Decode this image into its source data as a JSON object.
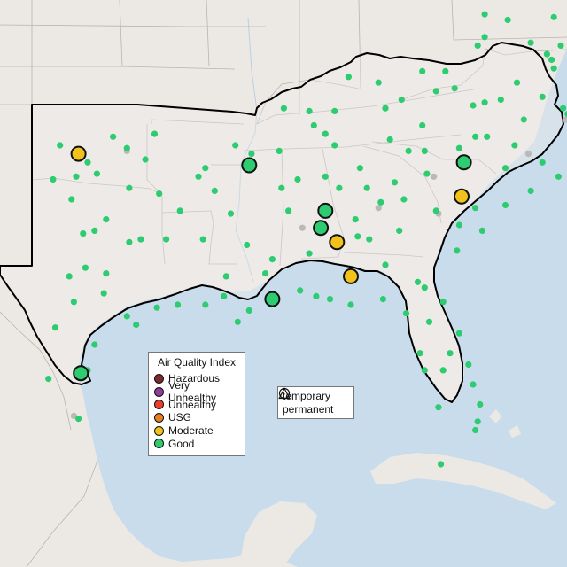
{
  "map": {
    "colors": {
      "water": "#c9dcec",
      "land": "#ece9e5",
      "land_focus": "#f1efec",
      "region_border": "#000000",
      "state_border": "#b8b4b0",
      "river": "#b9cfe2"
    }
  },
  "legend": {
    "title": "Air Quality Index",
    "categories": [
      {
        "label": "Hazardous",
        "color": "#7e2a2a"
      },
      {
        "label": "Very Unhealthy",
        "color": "#8f3f97"
      },
      {
        "label": "Unhealthy",
        "color": "#e8402a"
      },
      {
        "label": "USG",
        "color": "#e67e22"
      },
      {
        "label": "Moderate",
        "color": "#f2c21a"
      },
      {
        "label": "Good",
        "color": "#2ecc71"
      }
    ]
  },
  "monitor_types": {
    "items": [
      {
        "label": "temporary",
        "icon": "circle-icon"
      },
      {
        "label": "permanent",
        "icon": "triangle-icon"
      }
    ]
  },
  "monitors": [
    {
      "lon": -97.5,
      "lat": 35.5,
      "aqi": "Moderate"
    },
    {
      "lon": -90.1,
      "lat": 35.1,
      "aqi": "Good"
    },
    {
      "lon": -86.8,
      "lat": 33.5,
      "aqi": "Good"
    },
    {
      "lon": -87.0,
      "lat": 32.9,
      "aqi": "Good"
    },
    {
      "lon": -86.3,
      "lat": 32.4,
      "aqi": "Moderate"
    },
    {
      "lon": -85.7,
      "lat": 31.2,
      "aqi": "Moderate"
    },
    {
      "lon": -89.1,
      "lat": 30.4,
      "aqi": "Good"
    },
    {
      "lon": -80.8,
      "lat": 35.2,
      "aqi": "Good"
    },
    {
      "lon": -80.9,
      "lat": 34.0,
      "aqi": "Moderate"
    },
    {
      "lon": -97.4,
      "lat": 27.8,
      "aqi": "Good"
    }
  ],
  "sensors": [
    [
      -98.3,
      35.8
    ],
    [
      -97.1,
      35.2
    ],
    [
      -96.0,
      36.1
    ],
    [
      -95.4,
      35.7
    ],
    [
      -94.6,
      35.3
    ],
    [
      -97.6,
      34.7
    ],
    [
      -98.6,
      34.6
    ],
    [
      -96.7,
      34.8
    ],
    [
      -95.3,
      34.3
    ],
    [
      -96.8,
      32.8
    ],
    [
      -97.3,
      32.7
    ],
    [
      -96.3,
      33.2
    ],
    [
      -95.3,
      32.4
    ],
    [
      -94.8,
      32.5
    ],
    [
      -97.7,
      30.3
    ],
    [
      -98.5,
      29.4
    ],
    [
      -95.4,
      29.8
    ],
    [
      -95.0,
      29.5
    ],
    [
      -96.4,
      30.6
    ],
    [
      -94.1,
      30.1
    ],
    [
      -97.9,
      31.2
    ],
    [
      -97.2,
      31.5
    ],
    [
      -96.3,
      31.3
    ],
    [
      -97.8,
      33.9
    ],
    [
      -98.8,
      27.6
    ],
    [
      -97.5,
      26.2
    ],
    [
      -96.8,
      28.8
    ],
    [
      -97.1,
      27.9
    ],
    [
      -92.3,
      34.7
    ],
    [
      -94.2,
      36.2
    ],
    [
      -90.7,
      35.8
    ],
    [
      -92.0,
      35.0
    ],
    [
      -93.1,
      33.5
    ],
    [
      -91.6,
      34.2
    ],
    [
      -94.0,
      34.1
    ],
    [
      -93.7,
      32.5
    ],
    [
      -92.1,
      32.5
    ],
    [
      -91.2,
      30.5
    ],
    [
      -90.1,
      30.0
    ],
    [
      -92.0,
      30.2
    ],
    [
      -93.2,
      30.2
    ],
    [
      -91.1,
      31.2
    ],
    [
      -90.6,
      29.6
    ],
    [
      -90.2,
      32.3
    ],
    [
      -88.7,
      34.3
    ],
    [
      -89.1,
      31.8
    ],
    [
      -88.4,
      33.5
    ],
    [
      -90.9,
      33.4
    ],
    [
      -88.9,
      30.4
    ],
    [
      -89.4,
      31.3
    ],
    [
      -86.8,
      34.7
    ],
    [
      -85.5,
      33.2
    ],
    [
      -87.9,
      30.7
    ],
    [
      -85.4,
      32.6
    ],
    [
      -87.5,
      32.0
    ],
    [
      -88.0,
      34.6
    ],
    [
      -86.2,
      34.3
    ],
    [
      -84.4,
      33.8
    ],
    [
      -83.6,
      32.8
    ],
    [
      -81.1,
      32.1
    ],
    [
      -84.9,
      32.5
    ],
    [
      -83.4,
      33.9
    ],
    [
      -82.0,
      33.5
    ],
    [
      -84.2,
      31.6
    ],
    [
      -82.8,
      31.0
    ],
    [
      -85.0,
      34.3
    ],
    [
      -83.8,
      34.5
    ],
    [
      -84.3,
      30.4
    ],
    [
      -82.5,
      30.8
    ],
    [
      -81.7,
      30.3
    ],
    [
      -81.4,
      28.5
    ],
    [
      -82.5,
      27.9
    ],
    [
      -80.2,
      26.1
    ],
    [
      -80.1,
      26.7
    ],
    [
      -81.9,
      26.6
    ],
    [
      -82.3,
      29.6
    ],
    [
      -81.0,
      29.2
    ],
    [
      -80.6,
      28.1
    ],
    [
      -82.7,
      28.5
    ],
    [
      -81.7,
      27.9
    ],
    [
      -80.4,
      27.4
    ],
    [
      -80.3,
      25.8
    ],
    [
      -81.8,
      24.6
    ],
    [
      -87.2,
      30.5
    ],
    [
      -86.6,
      30.4
    ],
    [
      -85.7,
      30.2
    ],
    [
      -83.3,
      29.9
    ],
    [
      -86.8,
      36.2
    ],
    [
      -85.3,
      35.0
    ],
    [
      -84.0,
      36.0
    ],
    [
      -90.0,
      35.5
    ],
    [
      -88.8,
      35.6
    ],
    [
      -87.3,
      36.5
    ],
    [
      -82.6,
      36.5
    ],
    [
      -86.4,
      35.8
    ],
    [
      -83.2,
      35.6
    ],
    [
      -85.8,
      38.2
    ],
    [
      -84.5,
      38.0
    ],
    [
      -87.5,
      37.0
    ],
    [
      -83.5,
      37.4
    ],
    [
      -82.6,
      38.4
    ],
    [
      -86.4,
      37.0
    ],
    [
      -84.2,
      37.1
    ],
    [
      -88.6,
      37.1
    ],
    [
      -82.0,
      37.7
    ],
    [
      -78.6,
      35.8
    ],
    [
      -79.8,
      36.1
    ],
    [
      -77.9,
      34.2
    ],
    [
      -81.0,
      35.7
    ],
    [
      -77.4,
      35.2
    ],
    [
      -79.0,
      35.0
    ],
    [
      -82.5,
      35.6
    ],
    [
      -76.7,
      34.7
    ],
    [
      -76.0,
      36.1
    ],
    [
      -80.3,
      36.1
    ],
    [
      -80.0,
      32.8
    ],
    [
      -82.4,
      34.8
    ],
    [
      -81.0,
      33.0
    ],
    [
      -79.0,
      33.7
    ],
    [
      -80.3,
      33.6
    ],
    [
      -77.4,
      37.5
    ],
    [
      -79.9,
      37.3
    ],
    [
      -76.3,
      36.9
    ],
    [
      -78.5,
      38.0
    ],
    [
      -80.4,
      37.2
    ],
    [
      -77.0,
      38.8
    ],
    [
      -79.2,
      37.4
    ],
    [
      -76.5,
      37.1
    ],
    [
      -78.2,
      36.7
    ],
    [
      -81.6,
      38.4
    ],
    [
      -80.2,
      39.3
    ],
    [
      -79.9,
      39.6
    ],
    [
      -81.2,
      37.8
    ],
    [
      -77.9,
      39.4
    ],
    [
      -76.6,
      39.3
    ],
    [
      -77.2,
      39.0
    ],
    [
      -75.6,
      39.7
    ],
    [
      -76.9,
      38.5
    ],
    [
      -75.1,
      38.4
    ],
    [
      -75.2,
      40.0
    ],
    [
      -79.9,
      40.4
    ],
    [
      -76.9,
      40.3
    ],
    [
      -74.8,
      39.8
    ],
    [
      -78.9,
      40.2
    ]
  ],
  "gray_sensors": [
    [
      -95.4,
      35.6
    ],
    [
      -87.8,
      32.9
    ],
    [
      -84.5,
      33.6
    ],
    [
      -81.9,
      33.4
    ],
    [
      -82.1,
      34.7
    ],
    [
      -76.4,
      36.7
    ],
    [
      -97.7,
      26.3
    ],
    [
      -78.0,
      35.5
    ],
    [
      -75.9,
      38.6
    ]
  ]
}
